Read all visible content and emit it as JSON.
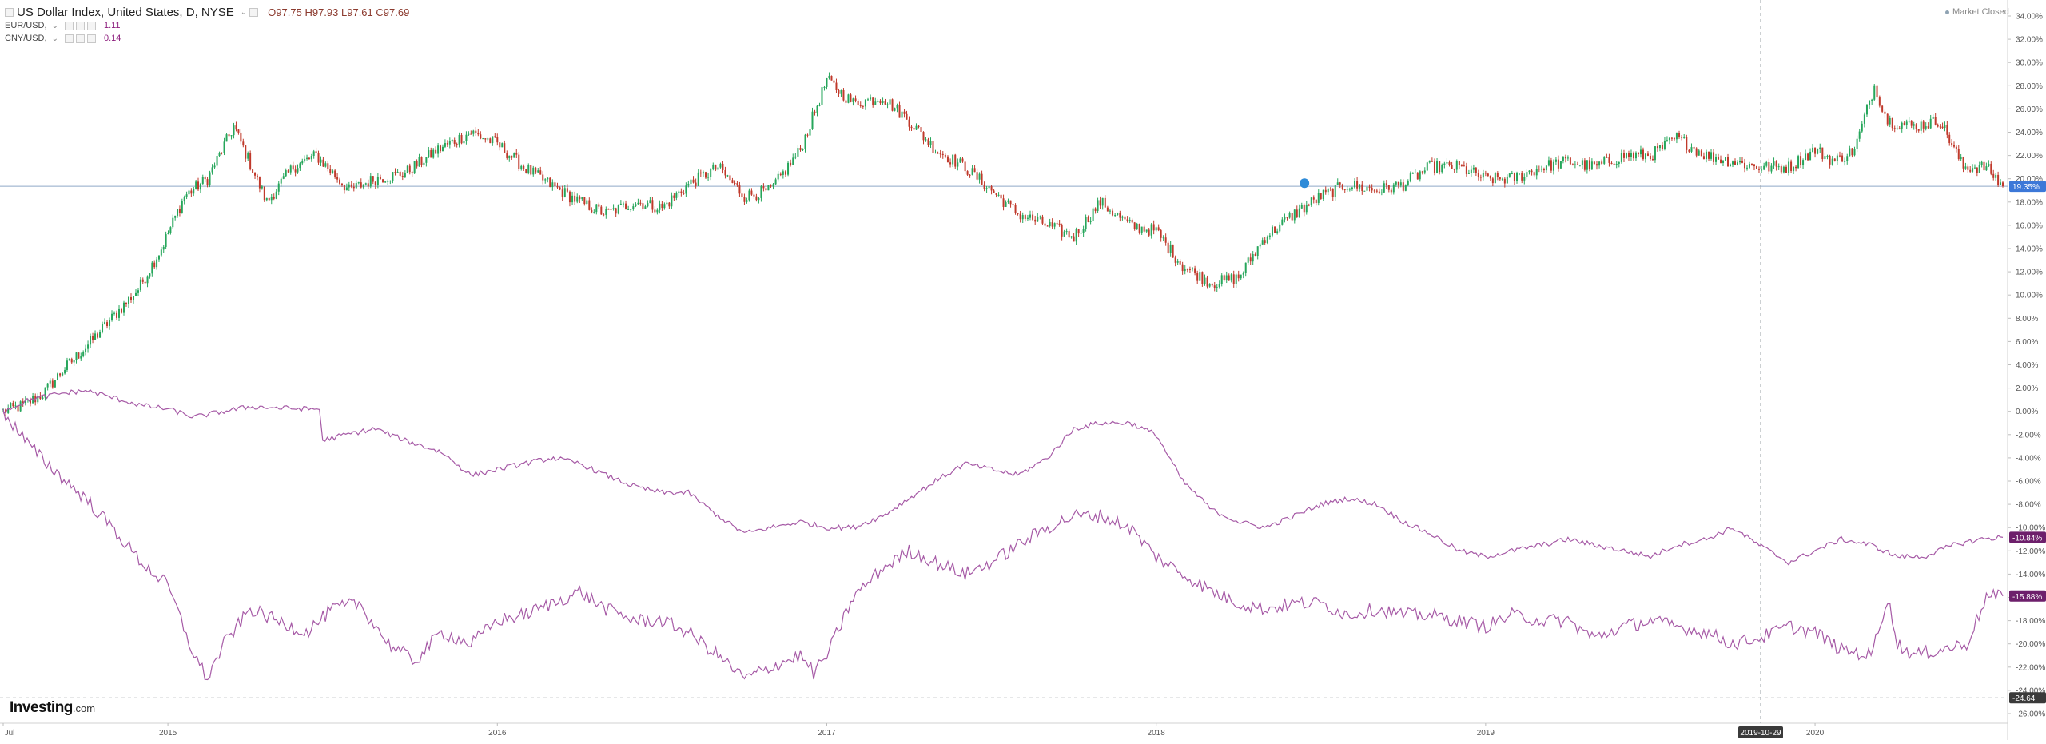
{
  "header": {
    "title": "US Dollar Index, United States, D, NYSE",
    "open": "O97.75",
    "high": "H97.93",
    "low": "L97.61",
    "close": "C97.69"
  },
  "legend_rows": [
    {
      "name": "EUR/USD,",
      "value": "1.11"
    },
    {
      "name": "CNY/USD,",
      "value": "0.14"
    }
  ],
  "market_status": "Market Closed",
  "brand": {
    "main": "Investing",
    "suffix": ".com"
  },
  "chart_data": {
    "type": "line",
    "ylim": [
      -26,
      34
    ],
    "y_ticks": [
      "34.00%",
      "32.00%",
      "30.00%",
      "28.00%",
      "26.00%",
      "24.00%",
      "22.00%",
      "20.00%",
      "18.00%",
      "16.00%",
      "14.00%",
      "12.00%",
      "10.00%",
      "8.00%",
      "6.00%",
      "4.00%",
      "2.00%",
      "0.00%",
      "-2.00%",
      "-4.00%",
      "-6.00%",
      "-8.00%",
      "-10.00%",
      "-12.00%",
      "-14.00%",
      "-16.00%",
      "-18.00%",
      "-20.00%",
      "-22.00%",
      "-24.00%",
      "-26.00%"
    ],
    "x_ticks": [
      "Jul",
      "2015",
      "2016",
      "2017",
      "2018",
      "2019",
      "2020"
    ],
    "crosshair": {
      "x_label": "2019-10-29",
      "y_label": "-24.64",
      "y_value": -24.64
    },
    "series": [
      {
        "name": "US Dollar Index",
        "color": "#26a65b",
        "last_label": "19.35%",
        "last_label_color": "#3c78d8",
        "last_value": 19.35,
        "x": [
          2014.5,
          2014.56,
          2014.62,
          2014.68,
          2014.75,
          2014.83,
          2014.91,
          2014.98,
          2015.05,
          2015.12,
          2015.2,
          2015.3,
          2015.38,
          2015.45,
          2015.55,
          2015.63,
          2015.72,
          2015.82,
          2015.92,
          2016.0,
          2016.08,
          2016.16,
          2016.25,
          2016.33,
          2016.42,
          2016.5,
          2016.58,
          2016.67,
          2016.75,
          2016.83,
          2016.92,
          2017.0,
          2017.08,
          2017.17,
          2017.25,
          2017.33,
          2017.42,
          2017.5,
          2017.58,
          2017.67,
          2017.75,
          2017.83,
          2017.92,
          2018.0,
          2018.08,
          2018.17,
          2018.25,
          2018.33,
          2018.42,
          2018.5,
          2018.58,
          2018.67,
          2018.75,
          2018.83,
          2018.92,
          2019.0,
          2019.08,
          2019.17,
          2019.25,
          2019.33,
          2019.42,
          2019.5,
          2019.58,
          2019.67,
          2019.75,
          2019.83,
          2019.92,
          2020.0,
          2020.06,
          2020.12,
          2020.18,
          2020.22,
          2020.3,
          2020.38,
          2020.45,
          2020.52,
          2020.57
        ],
        "y": [
          0.0,
          0.5,
          1.5,
          3.5,
          5.5,
          8.0,
          10.5,
          14.0,
          18.5,
          20.0,
          24.5,
          18.0,
          21.0,
          22.0,
          19.0,
          20.0,
          20.5,
          22.5,
          24.0,
          23.0,
          21.0,
          19.5,
          18.0,
          17.0,
          18.0,
          17.5,
          19.5,
          21.0,
          18.5,
          19.0,
          22.5,
          28.5,
          26.5,
          27.0,
          25.0,
          22.5,
          21.0,
          19.0,
          17.0,
          16.0,
          15.0,
          18.0,
          16.0,
          15.5,
          12.5,
          11.0,
          11.5,
          15.0,
          17.0,
          18.5,
          19.5,
          19.0,
          19.5,
          21.0,
          21.0,
          20.0,
          20.0,
          21.0,
          21.5,
          21.0,
          22.0,
          22.0,
          23.5,
          22.0,
          21.5,
          21.0,
          21.0,
          22.5,
          21.5,
          22.5,
          28.0,
          25.0,
          24.5,
          25.0,
          21.0,
          21.0,
          19.35
        ]
      },
      {
        "name": "EUR/USD",
        "color": "#a65aa6",
        "last_label": "-10.84%",
        "last_label_color": "#6d1f6b",
        "last_value": -10.84,
        "x": [
          2014.5,
          2014.58,
          2014.67,
          2014.75,
          2014.83,
          2014.92,
          2015.0,
          2015.08,
          2015.17,
          2015.25,
          2015.33,
          2015.42,
          2015.46,
          2015.47,
          2015.54,
          2015.63,
          2015.72,
          2015.83,
          2015.92,
          2016.0,
          2016.08,
          2016.17,
          2016.25,
          2016.33,
          2016.42,
          2016.5,
          2016.58,
          2016.67,
          2016.75,
          2016.83,
          2016.92,
          2017.0,
          2017.08,
          2017.17,
          2017.25,
          2017.33,
          2017.42,
          2017.5,
          2017.58,
          2017.67,
          2017.75,
          2017.83,
          2017.92,
          2018.0,
          2018.08,
          2018.17,
          2018.25,
          2018.33,
          2018.42,
          2018.5,
          2018.58,
          2018.67,
          2018.75,
          2018.83,
          2018.92,
          2019.0,
          2019.08,
          2019.17,
          2019.25,
          2019.33,
          2019.42,
          2019.5,
          2019.58,
          2019.67,
          2019.75,
          2019.83,
          2019.92,
          2020.0,
          2020.08,
          2020.17,
          2020.25,
          2020.33,
          2020.42,
          2020.5,
          2020.57
        ],
        "y": [
          0.0,
          1.0,
          1.5,
          1.8,
          1.2,
          0.5,
          0.2,
          -0.5,
          0.0,
          0.4,
          0.3,
          0.2,
          0.2,
          -2.5,
          -2.0,
          -1.5,
          -2.5,
          -3.5,
          -5.5,
          -5.0,
          -4.5,
          -4.0,
          -4.5,
          -5.5,
          -6.5,
          -7.0,
          -7.0,
          -9.0,
          -10.5,
          -10.0,
          -9.5,
          -10.0,
          -10.0,
          -9.0,
          -7.5,
          -6.0,
          -4.5,
          -5.0,
          -5.5,
          -4.0,
          -1.5,
          -1.0,
          -1.0,
          -2.0,
          -6.0,
          -8.5,
          -9.5,
          -10.0,
          -9.0,
          -8.0,
          -7.5,
          -8.0,
          -9.5,
          -10.5,
          -12.0,
          -12.5,
          -12.0,
          -11.5,
          -11.0,
          -11.5,
          -12.0,
          -12.5,
          -11.5,
          -11.0,
          -10.0,
          -11.5,
          -13.0,
          -12.0,
          -11.0,
          -11.5,
          -12.5,
          -12.5,
          -11.5,
          -11.0,
          -10.84
        ]
      },
      {
        "name": "CNY/USD",
        "color": "#a65aa6",
        "last_label": "-15.88%",
        "last_label_color": "#6d1f6b",
        "last_value": -15.88,
        "x": [
          2014.5,
          2014.58,
          2014.67,
          2014.75,
          2014.83,
          2014.92,
          2015.0,
          2015.04,
          2015.08,
          2015.12,
          2015.17,
          2015.25,
          2015.33,
          2015.42,
          2015.5,
          2015.58,
          2015.67,
          2015.75,
          2015.83,
          2015.92,
          2016.0,
          2016.08,
          2016.17,
          2016.25,
          2016.33,
          2016.42,
          2016.5,
          2016.58,
          2016.67,
          2016.75,
          2016.83,
          2016.92,
          2016.96,
          2017.0,
          2017.08,
          2017.17,
          2017.25,
          2017.33,
          2017.42,
          2017.5,
          2017.58,
          2017.67,
          2017.75,
          2017.83,
          2017.92,
          2018.0,
          2018.08,
          2018.17,
          2018.25,
          2018.33,
          2018.42,
          2018.5,
          2018.58,
          2018.67,
          2018.75,
          2018.83,
          2018.92,
          2019.0,
          2019.08,
          2019.17,
          2019.25,
          2019.33,
          2019.42,
          2019.5,
          2019.58,
          2019.67,
          2019.75,
          2019.83,
          2019.92,
          2020.0,
          2020.08,
          2020.17,
          2020.22,
          2020.25,
          2020.3,
          2020.38,
          2020.46,
          2020.52,
          2020.57
        ],
        "y": [
          0.0,
          -3.0,
          -5.5,
          -7.5,
          -10.0,
          -13.0,
          -15.0,
          -18.0,
          -21.0,
          -23.0,
          -20.0,
          -17.0,
          -18.0,
          -19.0,
          -17.0,
          -16.5,
          -20.0,
          -21.5,
          -19.0,
          -20.0,
          -18.0,
          -17.5,
          -16.5,
          -15.5,
          -17.0,
          -18.0,
          -18.0,
          -19.0,
          -21.0,
          -23.0,
          -22.0,
          -21.0,
          -22.5,
          -21.0,
          -16.0,
          -13.5,
          -12.0,
          -13.0,
          -14.0,
          -13.0,
          -11.5,
          -10.0,
          -9.0,
          -9.0,
          -10.0,
          -12.5,
          -14.0,
          -15.5,
          -16.5,
          -17.0,
          -16.5,
          -16.5,
          -17.5,
          -17.0,
          -17.5,
          -17.5,
          -18.0,
          -18.5,
          -17.5,
          -18.0,
          -18.0,
          -19.5,
          -18.5,
          -18.0,
          -18.5,
          -19.0,
          -20.0,
          -19.5,
          -18.5,
          -19.0,
          -20.5,
          -21.0,
          -16.0,
          -20.0,
          -21.0,
          -20.5,
          -20.0,
          -16.0,
          -15.88
        ]
      }
    ]
  },
  "colors": {
    "grid_crosshair": "#9aa0a6",
    "axis_text": "#555555",
    "up_candle": "#26a65b",
    "down_candle": "#c0392b"
  }
}
